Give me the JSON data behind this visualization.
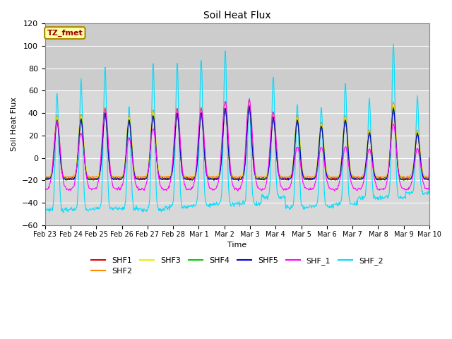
{
  "title": "Soil Heat Flux",
  "xlabel": "Time",
  "ylabel": "Soil Heat Flux",
  "ylim": [
    -60,
    120
  ],
  "yticks": [
    -60,
    -40,
    -20,
    0,
    20,
    40,
    60,
    80,
    100,
    120
  ],
  "date_labels": [
    "Feb 23",
    "Feb 24",
    "Feb 25",
    "Feb 26",
    "Feb 27",
    "Feb 28",
    "Mar 1",
    "Mar 2",
    "Mar 3",
    "Mar 4",
    "Mar 5",
    "Mar 6",
    "Mar 7",
    "Mar 8",
    "Mar 9",
    "Mar 10"
  ],
  "series_colors": {
    "SHF1": "#dd0000",
    "SHF2": "#ff8800",
    "SHF3": "#eeee00",
    "SHF4": "#00cc00",
    "SHF5": "#0000dd",
    "SHF_1": "#ff00ff",
    "SHF_2": "#00ddff"
  },
  "annotation_text": "TZ_fmet",
  "annotation_bg": "#ffffaa",
  "annotation_border": "#aa8800",
  "annotation_text_color": "#990000",
  "plot_bg_color": "#d8d8d8",
  "plot_bg_upper": "#d0d0d0",
  "grid_color": "#ffffff",
  "fig_bg": "#ffffff"
}
